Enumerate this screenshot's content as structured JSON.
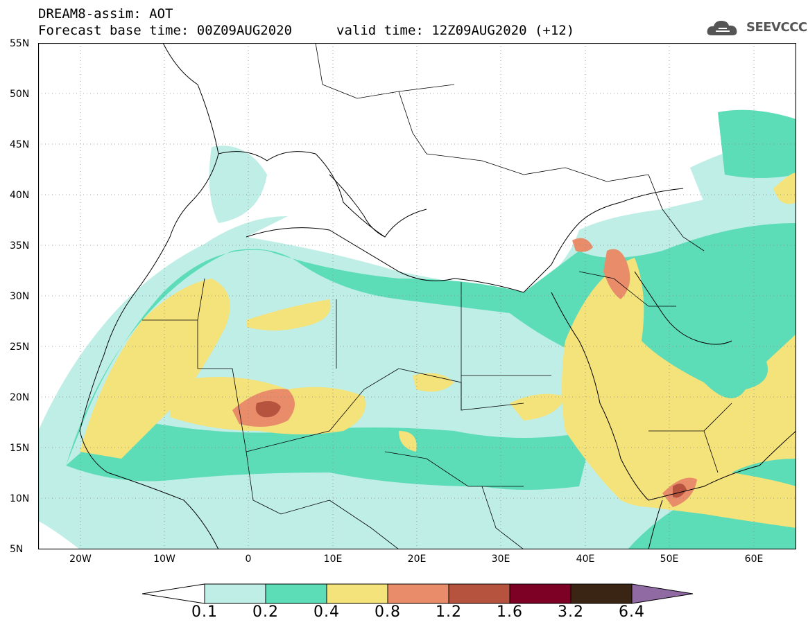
{
  "header": {
    "line1": "DREAM8-assim: AOT",
    "base_time": "Forecast base time: 00Z09AUG2020",
    "valid_time": "valid time: 12Z09AUG2020 (+12)"
  },
  "logo": {
    "text": "SEEVCCC",
    "icon": "cloud-icon"
  },
  "axes": {
    "lat_labels": [
      "55N",
      "50N",
      "45N",
      "40N",
      "35N",
      "30N",
      "25N",
      "20N",
      "15N",
      "10N",
      "5N"
    ],
    "lon_labels": [
      "20W",
      "10W",
      "0",
      "10E",
      "20E",
      "30E",
      "40E",
      "50E",
      "60E"
    ],
    "lon_range": [
      -25,
      65
    ],
    "lat_range": [
      5,
      55
    ],
    "grid": true
  },
  "legend": {
    "labels": [
      "0.1",
      "0.2",
      "0.4",
      "0.8",
      "1.2",
      "1.6",
      "3.2",
      "6.4"
    ],
    "colors": [
      "#ffffff",
      "#bfeee6",
      "#5ddcb8",
      "#f4e27a",
      "#e88c6a",
      "#b5533f",
      "#7d0025",
      "#3a2515",
      "#8f6aa3"
    ]
  },
  "colors": {
    "aot_0_1": "#bfeee6",
    "aot_0_2": "#5ddcb8",
    "aot_0_4": "#f4e27a",
    "aot_0_8": "#e88c6a",
    "aot_1_2": "#b5533f",
    "land_border": "#000000"
  }
}
